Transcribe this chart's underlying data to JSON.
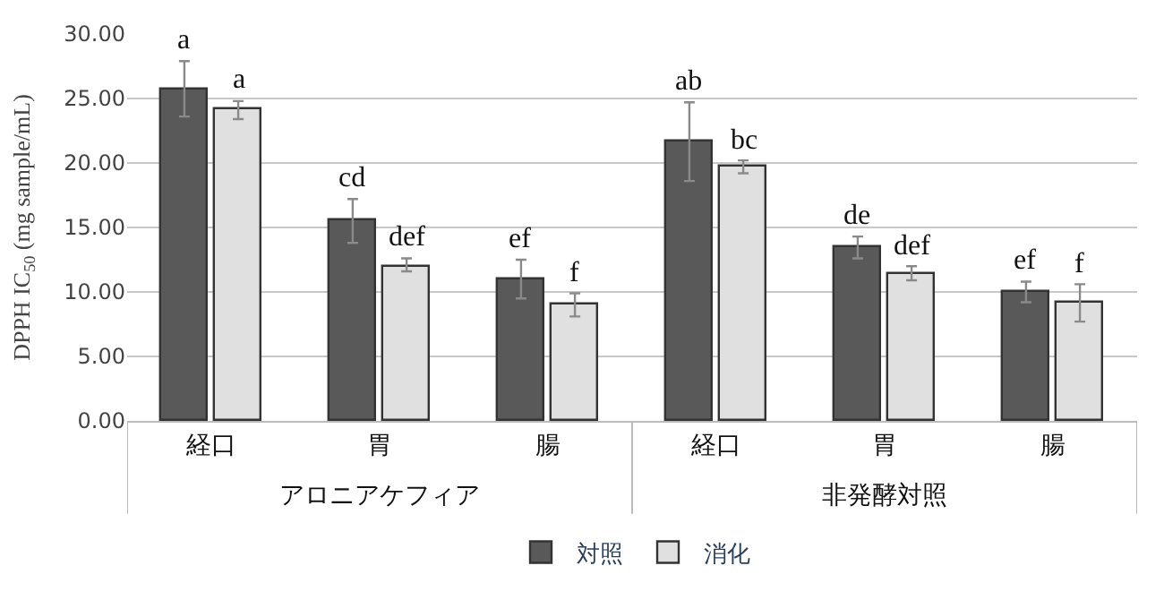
{
  "chart_data": {
    "type": "bar",
    "ylabel": "DPPH IC$_{50}$ (mg sample/mL)",
    "categories": [
      "経口",
      "胃",
      "腸",
      "経口",
      "胃",
      "腸"
    ],
    "annotations": [
      "アロニアケフィア",
      "非発酵対照"
    ],
    "series": [
      {
        "name": "対照",
        "color": "#595959",
        "values": [
          25.7,
          15.5,
          11.0,
          21.7,
          13.5,
          10.0
        ],
        "errors": [
          [
            23.6,
            27.9
          ],
          [
            13.8,
            17.2
          ],
          [
            9.5,
            12.5
          ],
          [
            18.6,
            24.7
          ],
          [
            12.6,
            14.3
          ],
          [
            9.2,
            10.8
          ]
        ],
        "value_labels": [
          "a",
          "cd",
          "ef",
          "ab",
          "de",
          "ef"
        ]
      },
      {
        "name": "消化",
        "color": "#e0e0e0",
        "values": [
          24.1,
          12.0,
          9.0,
          19.7,
          11.4,
          9.2
        ],
        "errors": [
          [
            23.4,
            24.8
          ],
          [
            11.6,
            12.6
          ],
          [
            8.1,
            9.9
          ],
          [
            19.2,
            20.2
          ],
          [
            10.9,
            12.0
          ],
          [
            7.7,
            10.6
          ]
        ],
        "value_labels": [
          "a",
          "def",
          "f",
          "bc",
          "def",
          "f"
        ]
      }
    ],
    "ylim": [
      0,
      30
    ],
    "yticks": [
      {
        "value": 0,
        "label": "0.00"
      },
      {
        "value": 5,
        "label": "5.00"
      },
      {
        "value": 10,
        "label": "10.00"
      },
      {
        "value": 15,
        "label": "15.00"
      },
      {
        "value": 20,
        "label": "20.00"
      },
      {
        "value": 25,
        "label": "25.00"
      },
      {
        "value": 30,
        "label": "30.00"
      }
    ],
    "grid": "y",
    "legend": "bottom"
  }
}
